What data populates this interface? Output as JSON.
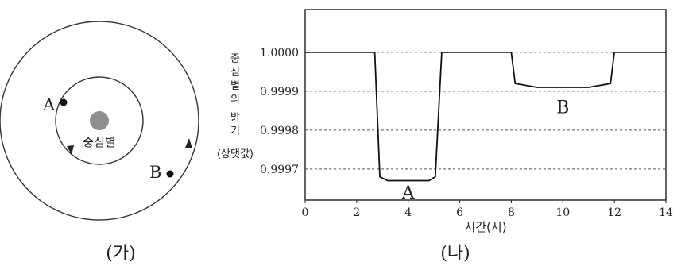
{
  "left_panel": {
    "label": "(가)",
    "star_label": "중심별",
    "planet_a_label": "A",
    "planet_b_label": "B"
  },
  "right_panel": {
    "label": "(나)"
  },
  "chart_data": {
    "type": "line",
    "xlabel": "시간(시)",
    "ylabel_lines": [
      "중",
      "심",
      "별",
      "의",
      "",
      "밝",
      "기",
      "(상댓값)"
    ],
    "x_ticks": [
      0,
      2,
      4,
      6,
      8,
      10,
      12,
      14
    ],
    "y_ticks": [
      "1.0000",
      "0.9999",
      "0.9998",
      "0.9997"
    ],
    "y_tick_values": [
      1.0,
      0.9999,
      0.9998,
      0.9997
    ],
    "xlim": [
      0,
      14
    ],
    "ylim": [
      0.99962,
      1.00011
    ],
    "grid": "horizontal dashed",
    "series": [
      {
        "x": [
          0,
          2.7,
          2.9,
          3.2,
          4.0,
          4.8,
          5.05,
          5.3,
          8.0,
          8.15,
          9.0,
          10.0,
          11.0,
          11.85,
          12.0,
          14.0
        ],
        "y": [
          1.0,
          1.0,
          0.99968,
          0.99967,
          0.99967,
          0.99967,
          0.99968,
          1.0,
          1.0,
          0.99992,
          0.99991,
          0.99991,
          0.99991,
          0.99992,
          1.0,
          1.0
        ]
      }
    ],
    "annotations": [
      {
        "text": "A",
        "x": 4.0,
        "y": 0.99964
      },
      {
        "text": "B",
        "x": 10.0,
        "y": 0.99986
      }
    ]
  }
}
